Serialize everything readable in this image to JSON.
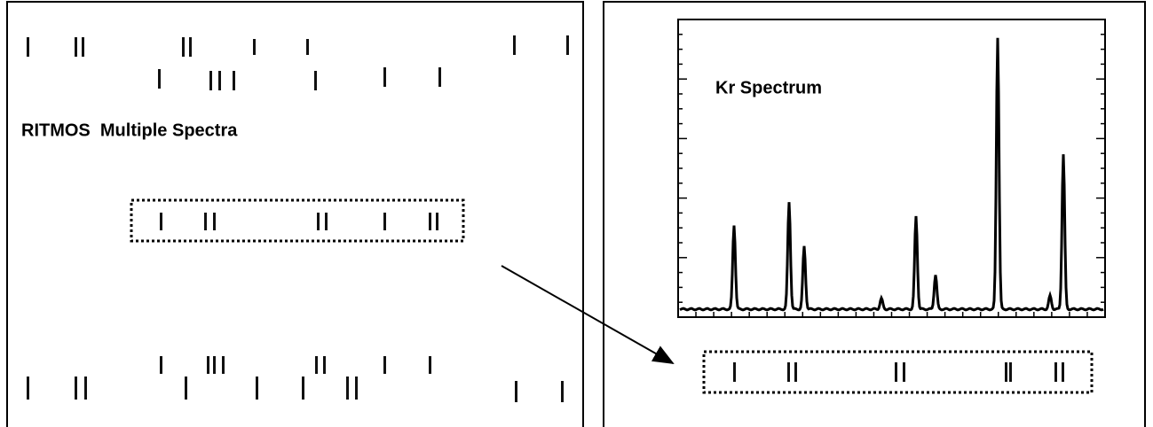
{
  "left_panel": {
    "title": "RITMOS  Multiple Spectra"
  },
  "right_panel": {
    "title": "Kr Spectrum"
  }
}
